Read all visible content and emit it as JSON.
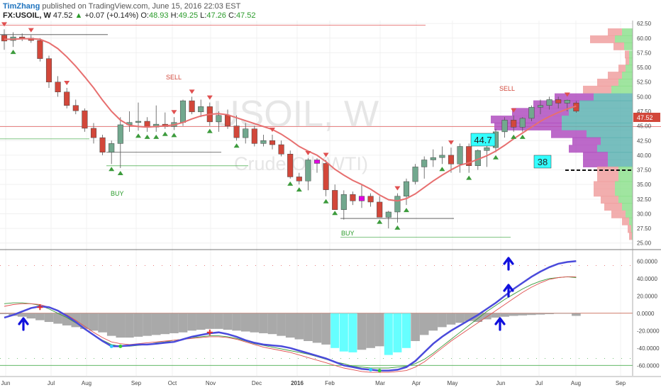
{
  "header": {
    "author": "TimZhang",
    "published": "published on TradingView.com, June 15, 2016 22:03 EST",
    "symbol": "FX:USOIL, W",
    "last": "47.52",
    "change_arrow": "▲",
    "change": "+0.07 (+0.14%)",
    "open_label": "O:",
    "open": "48.93",
    "high_label": "H:",
    "high": "49.25",
    "low_label": "L:",
    "low": "47.26",
    "close_label": "C:",
    "close": "47.52"
  },
  "watermark": {
    "symbol": "USOIL, W",
    "name": "Crude Oil (WTI)"
  },
  "annotations": {
    "sell": "SELL",
    "buy": "BUY",
    "box1": "44.7",
    "box2": "38",
    "price_tag": "47.52"
  },
  "colors": {
    "up": "#72a88e",
    "down": "#d2473a",
    "ma": "#e76f6f",
    "macd": "#4a4adb",
    "hist": "#9a9a9a",
    "hist_hi": "#66ffff",
    "vp_purple": "#b04fc0",
    "vp_teal": "#5fb3b3"
  },
  "chart_data": [
    {
      "type": "candlestick",
      "x_axis": {
        "labels": [
          "Jun",
          "Jul",
          "Aug",
          "Sep",
          "Oct",
          "Nov",
          "Dec",
          "2016",
          "Feb",
          "Mar",
          "Apr",
          "May",
          "Jun",
          "Jul",
          "Aug",
          "Sep"
        ]
      },
      "y_axis": {
        "side": "right",
        "range": [
          24,
          63
        ],
        "ticks": [
          "62.50",
          "60.00",
          "57.50",
          "55.00",
          "52.50",
          "50.00",
          "47.50",
          "45.00",
          "42.50",
          "40.00",
          "37.50",
          "35.00",
          "32.50",
          "30.00",
          "27.50",
          "25.00"
        ]
      },
      "candles": [
        {
          "o": 60.5,
          "h": 61.5,
          "l": 58,
          "c": 59.5
        },
        {
          "o": 59.6,
          "h": 61,
          "l": 58.5,
          "c": 60.2
        },
        {
          "o": 60.2,
          "h": 60.8,
          "l": 59.5,
          "c": 60.0
        },
        {
          "o": 60,
          "h": 60.5,
          "l": 59.2,
          "c": 59.6
        },
        {
          "o": 59.6,
          "h": 60,
          "l": 56,
          "c": 56.5
        },
        {
          "o": 56.5,
          "h": 57,
          "l": 51.5,
          "c": 52.5
        },
        {
          "o": 52.5,
          "h": 53.5,
          "l": 50,
          "c": 50.8
        },
        {
          "o": 50.8,
          "h": 51.5,
          "l": 48,
          "c": 48.5
        },
        {
          "o": 48.5,
          "h": 49.5,
          "l": 47,
          "c": 47.6
        },
        {
          "o": 47.6,
          "h": 48,
          "l": 44,
          "c": 44.6
        },
        {
          "o": 44.6,
          "h": 45.5,
          "l": 42,
          "c": 43.0
        },
        {
          "o": 43,
          "h": 43.5,
          "l": 40,
          "c": 40.5
        },
        {
          "o": 40.5,
          "h": 42.5,
          "l": 38.5,
          "c": 42.0
        },
        {
          "o": 42,
          "h": 46.5,
          "l": 37.8,
          "c": 45.2
        },
        {
          "o": 45.2,
          "h": 47.5,
          "l": 44,
          "c": 45.6
        },
        {
          "o": 45.6,
          "h": 49,
          "l": 44.2,
          "c": 45.8
        },
        {
          "o": 45.8,
          "h": 46.5,
          "l": 44,
          "c": 44.8
        },
        {
          "o": 44.8,
          "h": 48.5,
          "l": 44,
          "c": 45.3
        },
        {
          "o": 45.3,
          "h": 47.3,
          "l": 44.5,
          "c": 44.9
        },
        {
          "o": 44.9,
          "h": 46.5,
          "l": 44.3,
          "c": 45.6
        },
        {
          "o": 45.6,
          "h": 49.5,
          "l": 45,
          "c": 49.3
        },
        {
          "o": 49.3,
          "h": 50,
          "l": 47,
          "c": 47.4
        },
        {
          "o": 47.4,
          "h": 49.5,
          "l": 46.5,
          "c": 48.3
        },
        {
          "o": 48.3,
          "h": 49,
          "l": 45,
          "c": 45.7
        },
        {
          "o": 45.7,
          "h": 47.5,
          "l": 44,
          "c": 46.8
        },
        {
          "o": 46.8,
          "h": 47.8,
          "l": 44.5,
          "c": 45
        },
        {
          "o": 45,
          "h": 46.8,
          "l": 42.5,
          "c": 43.0
        },
        {
          "o": 43,
          "h": 45.5,
          "l": 42,
          "c": 44.5
        },
        {
          "o": 44.5,
          "h": 45,
          "l": 41.5,
          "c": 42.0
        },
        {
          "o": 42,
          "h": 43.5,
          "l": 41.5,
          "c": 42.5
        },
        {
          "o": 42.5,
          "h": 43.5,
          "l": 41,
          "c": 41.8
        },
        {
          "o": 41.8,
          "h": 42.5,
          "l": 39.8,
          "c": 40.2
        },
        {
          "o": 40.2,
          "h": 40.8,
          "l": 36,
          "c": 36.3
        },
        {
          "o": 36.3,
          "h": 37,
          "l": 35,
          "c": 35.6
        },
        {
          "o": 35.6,
          "h": 39.5,
          "l": 34,
          "c": 39.2
        },
        {
          "o": 39.2,
          "h": 39.5,
          "l": 37,
          "c": 38.6
        },
        {
          "o": 38.6,
          "h": 39.2,
          "l": 33,
          "c": 34.1
        },
        {
          "o": 34,
          "h": 35,
          "l": 31,
          "c": 30.7
        },
        {
          "o": 30.7,
          "h": 34,
          "l": 29,
          "c": 33.3
        },
        {
          "o": 33.3,
          "h": 33.8,
          "l": 31.5,
          "c": 32.2
        },
        {
          "o": 32.2,
          "h": 35,
          "l": 31,
          "c": 33.0
        },
        {
          "o": 33,
          "h": 33.5,
          "l": 31.2,
          "c": 32.0
        },
        {
          "o": 32,
          "h": 33,
          "l": 29.5,
          "c": 29.4
        },
        {
          "o": 29.4,
          "h": 30.5,
          "l": 27.5,
          "c": 30.3
        },
        {
          "o": 30.3,
          "h": 33.5,
          "l": 28.5,
          "c": 33.0
        },
        {
          "o": 33,
          "h": 36,
          "l": 31.5,
          "c": 35.5
        },
        {
          "o": 35.5,
          "h": 38.5,
          "l": 35,
          "c": 38.0
        },
        {
          "o": 38,
          "h": 39.8,
          "l": 36,
          "c": 39.2
        },
        {
          "o": 39.2,
          "h": 41,
          "l": 38,
          "c": 39.6
        },
        {
          "o": 39.6,
          "h": 41.5,
          "l": 38.5,
          "c": 40.0
        },
        {
          "o": 40,
          "h": 41.3,
          "l": 37,
          "c": 38.5
        },
        {
          "o": 38.5,
          "h": 42,
          "l": 37,
          "c": 41.5
        },
        {
          "o": 41.5,
          "h": 42,
          "l": 37,
          "c": 38.2
        },
        {
          "o": 38.2,
          "h": 41,
          "l": 37.5,
          "c": 40.8
        },
        {
          "o": 40.8,
          "h": 42,
          "l": 38,
          "c": 41.3
        },
        {
          "o": 41.3,
          "h": 44.5,
          "l": 40.5,
          "c": 44.0
        },
        {
          "o": 44,
          "h": 46.5,
          "l": 43,
          "c": 46.0
        },
        {
          "o": 46,
          "h": 46.8,
          "l": 44,
          "c": 44.8
        },
        {
          "o": 44.8,
          "h": 46.5,
          "l": 44,
          "c": 46.3
        },
        {
          "o": 46.3,
          "h": 48.5,
          "l": 45.8,
          "c": 48.2
        },
        {
          "o": 48.2,
          "h": 49.5,
          "l": 47,
          "c": 48.5
        },
        {
          "o": 48.5,
          "h": 50,
          "l": 47.8,
          "c": 49.5
        },
        {
          "o": 49.5,
          "h": 50,
          "l": 48,
          "c": 48.9
        },
        {
          "o": 48.9,
          "h": 49.5,
          "l": 47.5,
          "c": 49.4
        },
        {
          "o": 48.93,
          "h": 49.25,
          "l": 47.26,
          "c": 47.52
        }
      ],
      "moving_average": [
        59.8,
        59.8,
        59.9,
        59.9,
        59.8,
        59.2,
        58.2,
        56.8,
        55.2,
        53.4,
        51.5,
        49.4,
        47.5,
        46.0,
        45.1,
        44.9,
        44.8,
        44.9,
        45.0,
        45.2,
        45.6,
        46.2,
        46.7,
        47.0,
        47.1,
        46.9,
        46.4,
        45.9,
        45.4,
        44.9,
        44.4,
        43.6,
        42.6,
        41.5,
        40.7,
        40.0,
        38.9,
        37.6,
        36.6,
        35.7,
        35.0,
        34.2,
        33.2,
        32.4,
        32.2,
        32.6,
        33.4,
        34.5,
        35.6,
        36.6,
        37.5,
        38.3,
        38.7,
        39.3,
        39.9,
        40.7,
        41.7,
        42.8,
        43.8,
        44.8,
        45.8,
        46.6,
        47.3,
        47.9,
        48.4
      ],
      "levels": [
        {
          "price": 62.2,
          "color": "red"
        },
        {
          "price": 60.6,
          "color": "black"
        },
        {
          "price": 44.9,
          "color": "red"
        },
        {
          "price": 42.8,
          "color": "green"
        },
        {
          "price": 40.5,
          "color": "black"
        },
        {
          "price": 38.2,
          "color": "green"
        },
        {
          "price": 29.2,
          "color": "black"
        },
        {
          "price": 26.0,
          "color": "green"
        }
      ],
      "signals": {
        "sell_label_at": [
          13,
          63
        ],
        "buy_label_at": [
          13,
          43
        ]
      },
      "volume_profile": [
        {
          "price": 61.0,
          "up": 0.15,
          "down": 0.2
        },
        {
          "price": 59.8,
          "up": 0.25,
          "down": 0.35
        },
        {
          "price": 58.6,
          "up": 0.12,
          "down": 0.15
        },
        {
          "price": 57.2,
          "up": 0.05,
          "down": 0.06
        },
        {
          "price": 56.0,
          "up": 0.05,
          "down": 0.05
        },
        {
          "price": 54.8,
          "up": 0.1,
          "down": 0.1
        },
        {
          "price": 53.6,
          "up": 0.15,
          "down": 0.2
        },
        {
          "price": 52.4,
          "up": 0.2,
          "down": 0.3
        },
        {
          "price": 51.2,
          "up": 0.3,
          "down": 0.4
        },
        {
          "price": 49.9,
          "up": 0.55,
          "down": 0.55
        },
        {
          "price": 48.7,
          "up": 0.75,
          "down": 0.65
        },
        {
          "price": 47.4,
          "up": 0.9,
          "down": 0.8
        },
        {
          "price": 46.1,
          "up": 1.0,
          "down": 1.0
        },
        {
          "price": 44.9,
          "up": 1.0,
          "down": 0.95
        },
        {
          "price": 43.6,
          "up": 0.65,
          "down": 0.5
        },
        {
          "price": 42.4,
          "up": 0.45,
          "down": 0.4
        },
        {
          "price": 41.1,
          "up": 0.5,
          "down": 0.4
        },
        {
          "price": 39.9,
          "up": 0.35,
          "down": 0.35
        },
        {
          "price": 38.6,
          "up": 0.35,
          "down": 0.35
        },
        {
          "price": 37.4,
          "up": 0.2,
          "down": 0.3
        },
        {
          "price": 36.1,
          "up": 0.2,
          "down": 0.3
        },
        {
          "price": 34.9,
          "up": 0.25,
          "down": 0.3
        },
        {
          "price": 33.6,
          "up": 0.25,
          "down": 0.3
        },
        {
          "price": 32.4,
          "up": 0.2,
          "down": 0.25
        },
        {
          "price": 31.2,
          "up": 0.15,
          "down": 0.25
        },
        {
          "price": 29.9,
          "up": 0.1,
          "down": 0.2
        },
        {
          "price": 28.7,
          "up": 0.05,
          "down": 0.1
        },
        {
          "price": 27.4,
          "up": 0.02,
          "down": 0.05
        },
        {
          "price": 26.2,
          "up": 0.01,
          "down": 0.04
        }
      ]
    },
    {
      "type": "macd",
      "y_axis": {
        "side": "right",
        "range": [
          -72,
          70
        ],
        "ticks": [
          "60.0000",
          "40.0000",
          "20.0000",
          "0.0000",
          "-20.0000",
          "-40.0000",
          "-60.0000"
        ]
      },
      "histogram": [
        -1,
        -3,
        -4,
        -6,
        -8,
        -10,
        -12,
        -14,
        -16,
        -18,
        -20,
        -22,
        -26,
        -28,
        -28,
        -27,
        -26,
        -25,
        -24,
        -23,
        -22,
        -20,
        -19,
        -18,
        -18,
        -19,
        -20,
        -21,
        -22,
        -23,
        -24,
        -26,
        -28,
        -30,
        -32,
        -34,
        -36,
        -40,
        -44,
        -45,
        -42,
        -40,
        -38,
        -48,
        -45,
        -40,
        -32,
        -25,
        -20,
        -16,
        -13,
        -11,
        -9,
        -10,
        -7,
        -5,
        -4,
        -3,
        -2.5,
        -2,
        -1.5,
        -1,
        -0.5,
        -0.5,
        -3
      ],
      "histogram_highlight": [
        37,
        38,
        39,
        43,
        44,
        45
      ],
      "macd_line": [
        -5,
        -2,
        2,
        6,
        8,
        7,
        3,
        -3,
        -10,
        -18,
        -25,
        -32,
        -38,
        -38,
        -37,
        -36,
        -36,
        -35,
        -34,
        -33,
        -30,
        -27,
        -25,
        -23,
        -22,
        -24,
        -27,
        -31,
        -34,
        -36,
        -37,
        -38,
        -40,
        -43,
        -46,
        -49,
        -52,
        -56,
        -60,
        -62,
        -64,
        -65,
        -66,
        -66,
        -65,
        -62,
        -55,
        -45,
        -35,
        -27,
        -20,
        -14,
        -8,
        -2,
        5,
        12,
        20,
        28,
        35,
        42,
        48,
        53,
        57,
        59,
        60
      ],
      "signal_line": [
        8,
        10,
        11,
        11,
        10,
        7,
        3,
        -2,
        -8,
        -15,
        -22,
        -28,
        -33,
        -35,
        -36,
        -35,
        -34,
        -33,
        -32,
        -31,
        -30,
        -29,
        -28,
        -27,
        -27,
        -28,
        -30,
        -33,
        -36,
        -39,
        -41,
        -43,
        -45,
        -48,
        -51,
        -54,
        -57,
        -60,
        -63,
        -65,
        -67,
        -68,
        -68,
        -68,
        -67,
        -66,
        -62,
        -56,
        -48,
        -40,
        -32,
        -25,
        -18,
        -11,
        -4,
        3,
        10,
        17,
        24,
        30,
        35,
        39,
        41,
        42,
        42
      ],
      "signal2_line": [
        11,
        12,
        12,
        11,
        9,
        5,
        0,
        -5,
        -11,
        -18,
        -25,
        -31,
        -36,
        -38,
        -38,
        -37,
        -36,
        -34,
        -33,
        -31,
        -30,
        -28,
        -27,
        -26,
        -26,
        -27,
        -29,
        -32,
        -35,
        -37,
        -39,
        -41,
        -43,
        -45,
        -47,
        -50,
        -53,
        -56,
        -58,
        -61,
        -62,
        -63,
        -63,
        -63,
        -62,
        -61,
        -58,
        -53,
        -46,
        -38,
        -30,
        -22,
        -14,
        -6,
        2,
        9,
        16,
        22,
        28,
        33,
        37,
        40,
        41,
        42,
        41
      ],
      "ref_levels": [
        {
          "value": 55,
          "color": "red"
        },
        {
          "value": -52,
          "color": "green"
        },
        {
          "value": -60,
          "color": "green"
        }
      ]
    }
  ]
}
